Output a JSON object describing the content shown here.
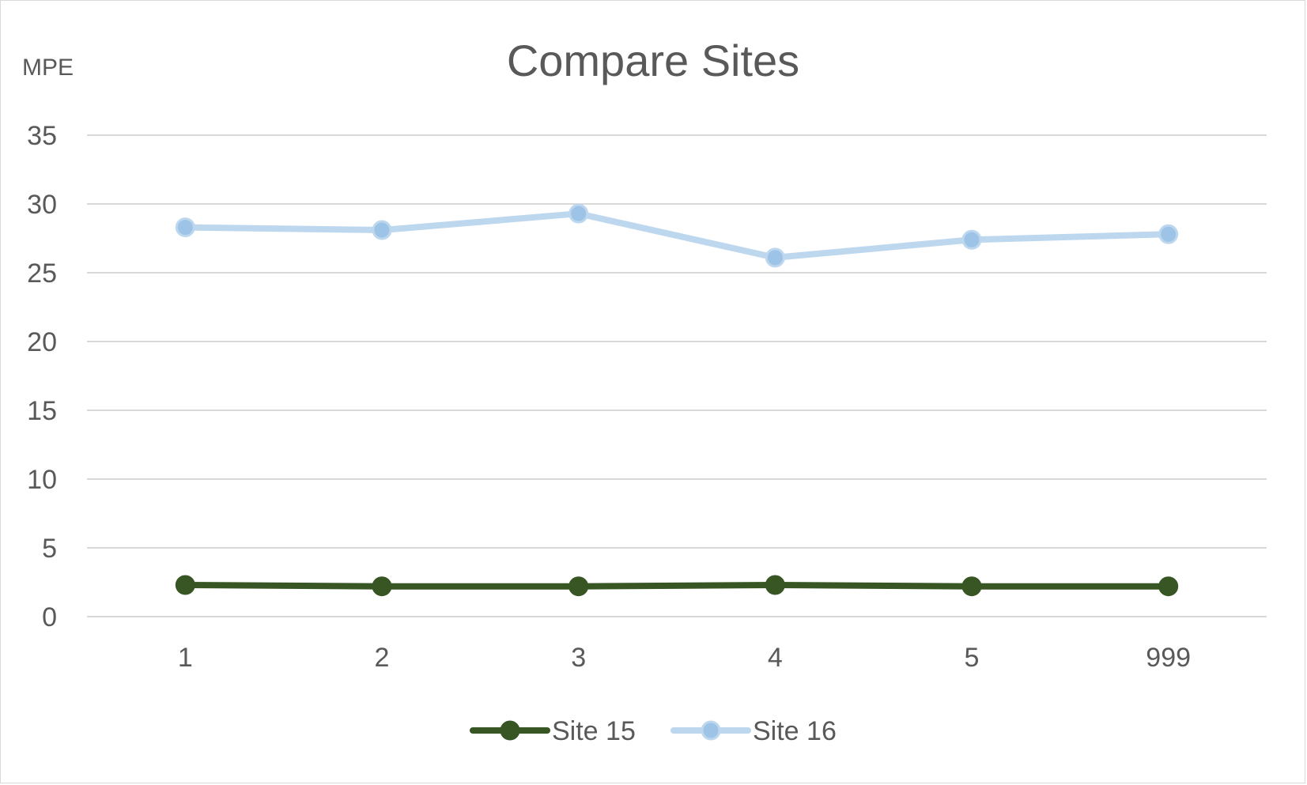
{
  "chart_data": {
    "type": "line",
    "title": "Compare Sites",
    "ylabel": "MPE",
    "xlabel": "",
    "categories": [
      "1",
      "2",
      "3",
      "4",
      "5",
      "999"
    ],
    "ylim": [
      0,
      35
    ],
    "yticks": [
      0,
      5,
      10,
      15,
      20,
      25,
      30,
      35
    ],
    "grid": true,
    "legend_position": "bottom",
    "series": [
      {
        "name": "Site 15",
        "values": [
          2.3,
          2.2,
          2.2,
          2.3,
          2.2,
          2.2
        ],
        "color": "#375623"
      },
      {
        "name": "Site 16",
        "values": [
          28.3,
          28.1,
          29.3,
          26.1,
          27.4,
          27.8
        ],
        "color": "#9dc3e6",
        "line_color": "#bdd7ee"
      }
    ]
  }
}
